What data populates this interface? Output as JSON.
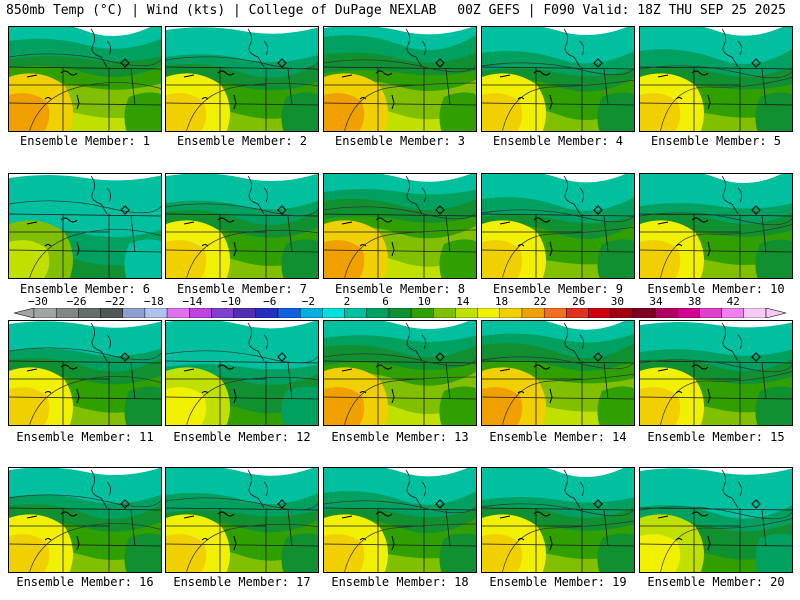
{
  "header": {
    "left": "850mb Temp (°C) | Wind (kts) | College of DuPage NEXLAB",
    "right": "00Z GEFS | F090 Valid: 18Z THU SEP 25 2025"
  },
  "members": [
    {
      "label": "Ensemble Member: 1",
      "warmth": 0.7
    },
    {
      "label": "Ensemble Member: 2",
      "warmth": 0.62
    },
    {
      "label": "Ensemble Member: 3",
      "warmth": 0.66
    },
    {
      "label": "Ensemble Member: 4",
      "warmth": 0.58
    },
    {
      "label": "Ensemble Member: 5",
      "warmth": 0.64
    },
    {
      "label": "Ensemble Member: 6",
      "warmth": 0.4
    },
    {
      "label": "Ensemble Member: 7",
      "warmth": 0.56
    },
    {
      "label": "Ensemble Member: 8",
      "warmth": 0.68
    },
    {
      "label": "Ensemble Member: 9",
      "warmth": 0.64
    },
    {
      "label": "Ensemble Member: 10",
      "warmth": 0.6
    },
    {
      "label": "Ensemble Member: 11",
      "warmth": 0.64
    },
    {
      "label": "Ensemble Member: 12",
      "warmth": 0.5
    },
    {
      "label": "Ensemble Member: 13",
      "warmth": 0.7
    },
    {
      "label": "Ensemble Member: 14",
      "warmth": 0.66
    },
    {
      "label": "Ensemble Member: 15",
      "warmth": 0.64
    },
    {
      "label": "Ensemble Member: 16",
      "warmth": 0.58
    },
    {
      "label": "Ensemble Member: 17",
      "warmth": 0.62
    },
    {
      "label": "Ensemble Member: 18",
      "warmth": 0.6
    },
    {
      "label": "Ensemble Member: 19",
      "warmth": 0.6
    },
    {
      "label": "Ensemble Member: 20",
      "warmth": 0.54
    }
  ],
  "colorbar": {
    "ticks": [
      "−30",
      "−26",
      "−22",
      "−18",
      "−14",
      "−10",
      "−6",
      "−2",
      "2",
      "6",
      "10",
      "14",
      "18",
      "22",
      "26",
      "30",
      "34",
      "38",
      "42"
    ],
    "colors": [
      "#9fa5a5",
      "#7f8787",
      "#656d6d",
      "#4f5757",
      "#8f9fd0",
      "#b0c0f0",
      "#e070f0",
      "#c040e0",
      "#8040d0",
      "#5030b0",
      "#2030c0",
      "#1060e0",
      "#00b0e0",
      "#00e0e0",
      "#00c0a0",
      "#00a060",
      "#109030",
      "#30a000",
      "#80c000",
      "#c0e000",
      "#f0f000",
      "#f0d000",
      "#f0a000",
      "#f07020",
      "#e03020",
      "#d00010",
      "#a00010",
      "#800020",
      "#b00060",
      "#d00090",
      "#e040d0",
      "#f080f0",
      "#f8c8f8"
    ]
  }
}
